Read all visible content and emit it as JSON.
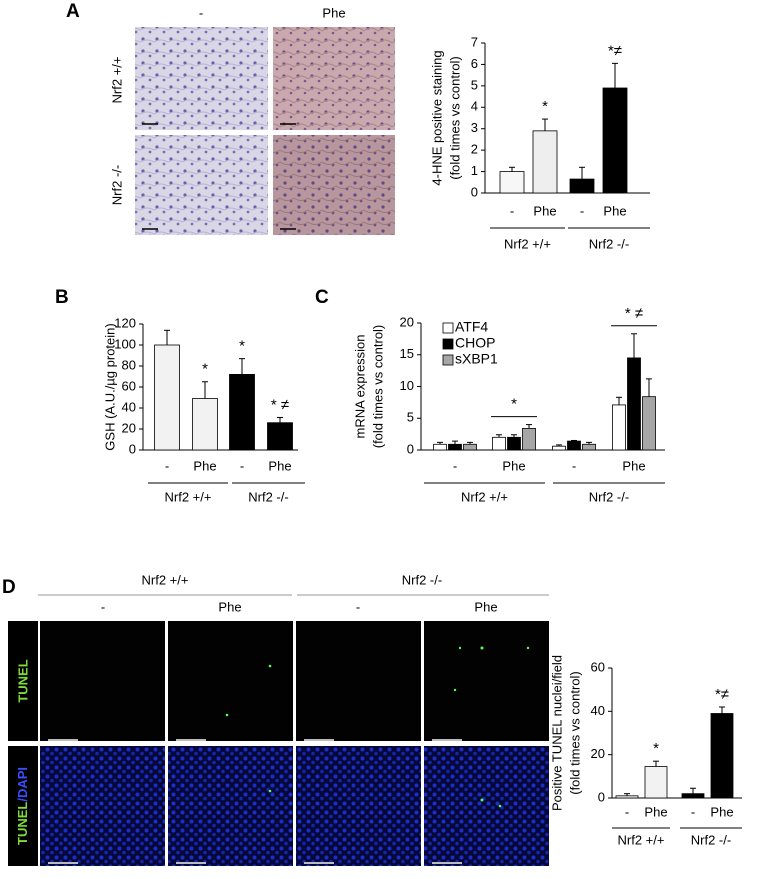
{
  "panel_labels": [
    "A",
    "B",
    "C",
    "D"
  ],
  "panel_a_images": {
    "columns": [
      "-",
      "Phe"
    ],
    "rows": [
      "Nrf2 +/+",
      "Nrf2 -/-"
    ]
  },
  "panel_d_images": {
    "groups": [
      "Nrf2 +/+",
      "Nrf2 -/-"
    ],
    "columns": [
      "-",
      "Phe",
      "-",
      "Phe"
    ],
    "rows": [
      [
        "TUNEL"
      ],
      [
        "TUNEL",
        "/DAPI"
      ]
    ]
  },
  "chart_data": [
    {
      "type": "bar",
      "y_label": [
        "4-HNE positive staining",
        "(fold times vs control)"
      ],
      "categories": [
        "-",
        "Phe",
        "-",
        "Phe"
      ],
      "groups": [
        "Nrf2 +/+",
        "Nrf2 -/-"
      ],
      "values": [
        1.0,
        2.9,
        0.65,
        4.9
      ],
      "errors": [
        0.2,
        0.55,
        0.55,
        1.15
      ],
      "colors": [
        "#f7f7f7",
        "#eeeeee",
        "#000000",
        "#000000"
      ],
      "significance": [
        null,
        "*",
        null,
        "*≠"
      ],
      "ylim": [
        0,
        7
      ],
      "yticks": [
        0,
        1,
        2,
        3,
        4,
        5,
        6,
        7
      ]
    },
    {
      "type": "bar",
      "y_label": [
        "GSH (A.U./µg protein)"
      ],
      "categories": [
        "-",
        "Phe",
        "-",
        "Phe"
      ],
      "groups": [
        "Nrf2 +/+",
        "Nrf2 -/-"
      ],
      "values": [
        100,
        49,
        72,
        26
      ],
      "errors": [
        14,
        16,
        15,
        5
      ],
      "colors": [
        "#f2f2f2",
        "#f2f2f2",
        "#000000",
        "#000000"
      ],
      "significance": [
        null,
        "*",
        "*",
        "* ≠"
      ],
      "ylim": [
        0,
        120
      ],
      "yticks": [
        0,
        20,
        40,
        60,
        80,
        100,
        120
      ]
    },
    {
      "type": "grouped_bar",
      "y_label": [
        "mRNA expression",
        "(fold times vs control)"
      ],
      "categories": [
        "-",
        "Phe",
        "-",
        "Phe"
      ],
      "groups": [
        "Nrf2 +/+",
        "Nrf2 -/-"
      ],
      "series": [
        {
          "name": "ATF4",
          "color": "#ffffff",
          "values": [
            0.9,
            2.0,
            0.6,
            7.1
          ],
          "errors": [
            0.3,
            0.4,
            0.2,
            1.2
          ]
        },
        {
          "name": "CHOP",
          "color": "#000000",
          "values": [
            0.9,
            2.0,
            1.4,
            14.5
          ],
          "errors": [
            0.5,
            0.4,
            0.1,
            3.8
          ]
        },
        {
          "name": "sXBP1",
          "color": "#a6a6a6",
          "values": [
            0.9,
            3.4,
            0.9,
            8.4
          ],
          "errors": [
            0.3,
            0.6,
            0.3,
            2.8
          ]
        }
      ],
      "group_significance": [
        null,
        "*",
        null,
        "* ≠"
      ],
      "ylim": [
        0,
        20
      ],
      "yticks": [
        0,
        5,
        10,
        15,
        20
      ]
    },
    {
      "type": "bar",
      "y_label": [
        "Positive TUNEL nuclei/field",
        "(fold times vs control)"
      ],
      "categories": [
        "-",
        "Phe",
        "-",
        "Phe"
      ],
      "groups": [
        "Nrf2 +/+",
        "Nrf2 -/-"
      ],
      "values": [
        1,
        14.5,
        2,
        39
      ],
      "errors": [
        1,
        2.5,
        2.5,
        3
      ],
      "colors": [
        "#f2f2f2",
        "#f2f2f2",
        "#000000",
        "#000000"
      ],
      "significance": [
        null,
        "*",
        null,
        "*≠"
      ],
      "ylim": [
        0,
        60
      ],
      "yticks": [
        0,
        20,
        40,
        60
      ]
    }
  ]
}
